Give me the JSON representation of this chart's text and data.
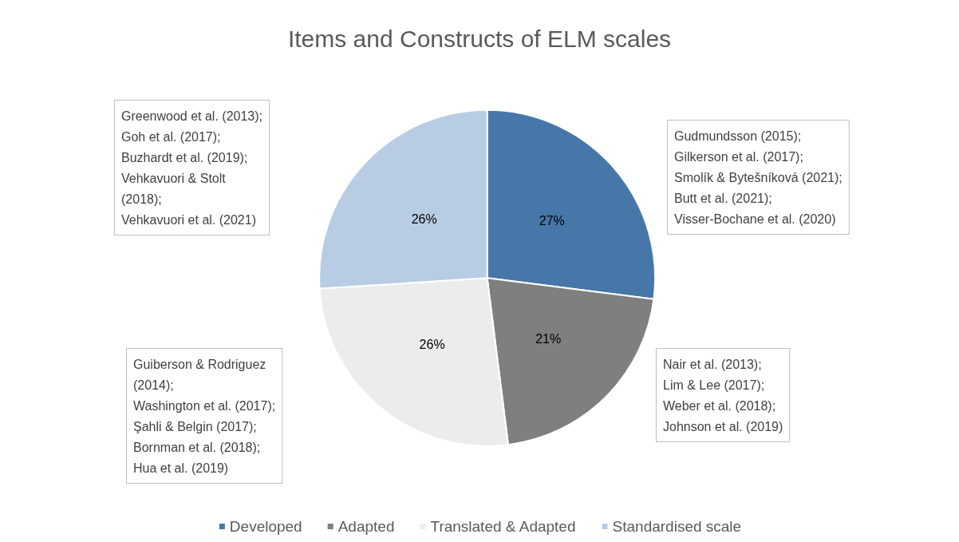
{
  "chart_data": {
    "type": "pie",
    "title": "Items and Constructs of ELM scales",
    "categories": [
      "Developed",
      "Adapted",
      "Translated & Adapted",
      "Standardised scale"
    ],
    "values": [
      27,
      21,
      26,
      26
    ],
    "colors": [
      "#4677a8",
      "#7f7f7f",
      "#ececec",
      "#b8cce4"
    ],
    "value_labels": [
      "27%",
      "21%",
      "26%",
      "26%"
    ],
    "legend": "bottom",
    "annotations": [
      "Greenwood et al. (2013);\nGoh et al. (2017);\nBuzhardt et al. (2019);\nVehkavuori & Stolt\n(2018);\nVehkavuori et al. (2021)",
      "Gudmundsson (2015);\nGilkerson et al. (2017);\nSmolík & Bytešníková (2021);\nButt et al. (2021);\nVisser-Bochane et al. (2020)",
      "Guiberson & Rodriguez\n(2014);\nWashington et al. (2017);\nŞahli & Belgin (2017);\nBornman et al. (2018);\nHua et al. (2019)",
      "Nair et al. (2013);\nLim & Lee (2017);\nWeber et al. (2018);\nJohnson et al. (2019)"
    ]
  }
}
